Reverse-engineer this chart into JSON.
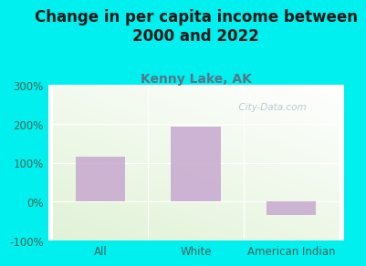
{
  "title": "Change in per capita income between\n2000 and 2022",
  "subtitle": "Kenny Lake, AK",
  "categories": [
    "All",
    "White",
    "American Indian"
  ],
  "values": [
    115,
    193,
    -35
  ],
  "bar_color": "#c8a8d0",
  "bg_color": "#00efef",
  "ylim": [
    -100,
    300
  ],
  "yticks": [
    -100,
    0,
    100,
    200,
    300
  ],
  "ytick_labels": [
    "-100%",
    "0%",
    "100%",
    "200%",
    "300%"
  ],
  "title_fontsize": 12,
  "title_color": "#1a1a1a",
  "subtitle_fontsize": 10,
  "subtitle_color": "#557788",
  "axis_tick_color": "#446655",
  "watermark": "  City-Data.com",
  "watermark_color": "#aabbcc"
}
